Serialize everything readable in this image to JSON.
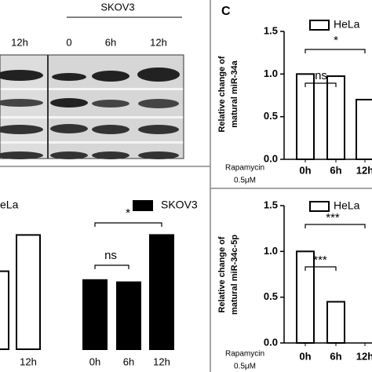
{
  "panel_label": "C",
  "blot": {
    "cell_line": "SKOV3",
    "lanes": [
      "12h",
      "0",
      "6h",
      "12h"
    ]
  },
  "chart_data": [
    {
      "type": "bar",
      "categories": [
        null,
        "12h",
        "0h",
        "6h",
        "12h"
      ],
      "series": [
        {
          "name": "eLa",
          "color": "#ffffff",
          "values": [
            0.71,
            1.04,
            null,
            null,
            null
          ]
        },
        {
          "name": "SKOV3",
          "color": "#000000",
          "values": [
            null,
            null,
            0.63,
            0.61,
            1.04
          ]
        }
      ],
      "ylim": [
        0,
        1.5
      ],
      "annotations": [
        "ns",
        "*"
      ]
    },
    {
      "type": "bar",
      "categories": [
        "0h",
        "6h",
        "12h"
      ],
      "series": [
        {
          "name": "HeLa",
          "color": "#ffffff",
          "values": [
            1.0,
            0.975,
            0.7
          ]
        }
      ],
      "ylim": [
        0,
        1.5
      ],
      "yticks": [
        {
          "value": 0,
          "label": "0.0"
        },
        {
          "value": 0.5,
          "label": "0.5"
        },
        {
          "value": 1,
          "label": "1.0"
        },
        {
          "value": 1.5,
          "label": "1.5"
        }
      ],
      "y_label": [
        "Relative change of",
        "matural miR-34a"
      ],
      "x_prefix": [
        "Rapamycin",
        "0.5μM"
      ],
      "annotations": [
        "ns",
        "*"
      ]
    },
    {
      "type": "bar",
      "categories": [
        "0h",
        "6h",
        "12h"
      ],
      "series": [
        {
          "name": "HeLa",
          "color": "#ffffff",
          "values": [
            1.0,
            0.45,
            null
          ]
        }
      ],
      "ylim": [
        0,
        1.5
      ],
      "yticks": [
        {
          "value": 0,
          "label": "0.0"
        },
        {
          "value": 0.5,
          "label": "0.5"
        },
        {
          "value": 1,
          "label": "1.0"
        },
        {
          "value": 1.5,
          "label": "1.5"
        }
      ],
      "y_label": [
        "Relative change of",
        "matural miR-34c-5p"
      ],
      "x_prefix": [
        "Rapamycin",
        "0.5μM"
      ],
      "annotations": [
        "***",
        "***"
      ]
    }
  ]
}
